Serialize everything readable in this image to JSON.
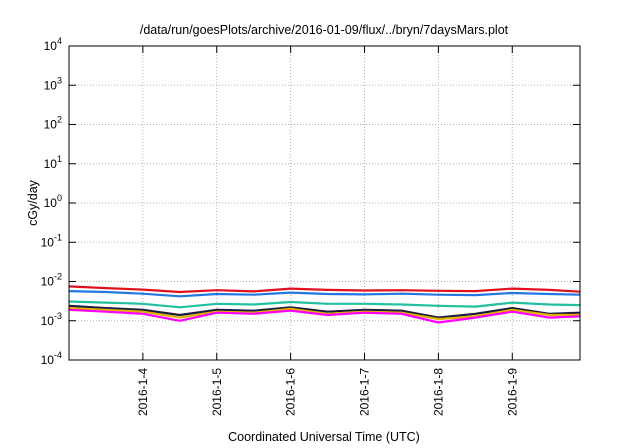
{
  "chart_data": {
    "type": "line",
    "title": "/data/run/goesPlots/archive/2016-01-09/flux/../bryn/7daysMars.plot",
    "xlabel": "Coordinated Universal Time (UTC)",
    "ylabel": "cGy/day",
    "y_scale": "log",
    "ylim": [
      0.0001,
      10000
    ],
    "y_ticks": [
      {
        "base": "10",
        "exp": "4"
      },
      {
        "base": "10",
        "exp": "3"
      },
      {
        "base": "10",
        "exp": "2"
      },
      {
        "base": "10",
        "exp": "1"
      },
      {
        "base": "10",
        "exp": "0"
      },
      {
        "base": "10",
        "exp": "-1"
      },
      {
        "base": "10",
        "exp": "-2"
      },
      {
        "base": "10",
        "exp": "-3"
      },
      {
        "base": "10",
        "exp": "-4"
      }
    ],
    "xlim": [
      "2016-01-03T00:00",
      "2016-01-09T22:00"
    ],
    "x_ticks": [
      "2016-1-4",
      "2016-1-5",
      "2016-1-6",
      "2016-1-7",
      "2016-1-8",
      "2016-1-9"
    ],
    "grid": true,
    "x": [
      "2016-01-03T00:00",
      "2016-01-03T12:00",
      "2016-01-04T00:00",
      "2016-01-04T12:00",
      "2016-01-05T00:00",
      "2016-01-05T12:00",
      "2016-01-06T00:00",
      "2016-01-06T12:00",
      "2016-01-07T00:00",
      "2016-01-07T12:00",
      "2016-01-08T00:00",
      "2016-01-08T12:00",
      "2016-01-09T00:00",
      "2016-01-09T12:00",
      "2016-01-09T22:00"
    ],
    "series": [
      {
        "color": "#e0101e",
        "values": [
          0.0075,
          0.0068,
          0.0062,
          0.0054,
          0.006,
          0.0056,
          0.0066,
          0.0061,
          0.0059,
          0.006,
          0.0058,
          0.0057,
          0.0066,
          0.0061,
          0.0055
        ]
      },
      {
        "color": "#2277e0",
        "values": [
          0.0057,
          0.0054,
          0.0049,
          0.0042,
          0.0048,
          0.0046,
          0.0052,
          0.0048,
          0.0047,
          0.0049,
          0.0046,
          0.0045,
          0.0051,
          0.0048,
          0.0046
        ]
      },
      {
        "color": "#22c0a0",
        "values": [
          0.0031,
          0.0029,
          0.0027,
          0.0022,
          0.0027,
          0.0026,
          0.003,
          0.0027,
          0.0027,
          0.0026,
          0.0024,
          0.0023,
          0.0029,
          0.0026,
          0.0025
        ]
      },
      {
        "color": "#1a1a3a",
        "values": [
          0.0024,
          0.0021,
          0.0019,
          0.0014,
          0.0019,
          0.0018,
          0.0022,
          0.0017,
          0.0019,
          0.0018,
          0.0012,
          0.0015,
          0.0021,
          0.0015,
          0.0016
        ]
      },
      {
        "color": "#e0b000",
        "values": [
          0.0021,
          0.0019,
          0.0017,
          0.0012,
          0.0017,
          0.0016,
          0.002,
          0.0015,
          0.0017,
          0.0016,
          0.0011,
          0.0013,
          0.0019,
          0.0014,
          0.0014
        ]
      },
      {
        "color": "#ff00ff",
        "values": [
          0.0019,
          0.0017,
          0.0015,
          0.001,
          0.0016,
          0.0015,
          0.0018,
          0.0014,
          0.0016,
          0.0015,
          0.0009,
          0.0012,
          0.0017,
          0.0012,
          0.0013
        ]
      }
    ]
  }
}
